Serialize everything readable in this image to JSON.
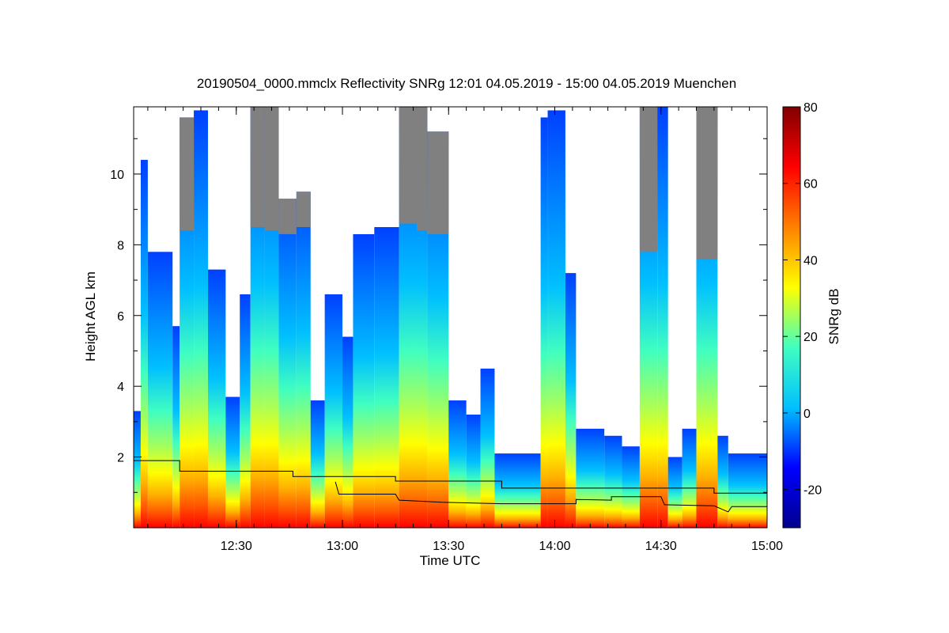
{
  "chart_data": {
    "type": "heatmap",
    "title": "20190504_0000.mmclx Reflectivity SNRg   12:01 04.05.2019 - 15:00 04.05.2019 Muenchen",
    "xlabel": "Time UTC",
    "ylabel": "Height AGL km",
    "colorbar_label": "SNRg dB",
    "xlim": [
      "12:01",
      "15:00"
    ],
    "ylim": [
      0,
      11.9
    ],
    "x_ticks": [
      "12:30",
      "13:00",
      "13:30",
      "14:00",
      "14:30",
      "15:00"
    ],
    "y_ticks": [
      2,
      4,
      6,
      8,
      10
    ],
    "colorbar_range": [
      -30,
      80
    ],
    "colorbar_ticks": [
      -20,
      0,
      20,
      40,
      60,
      80
    ],
    "colormap": [
      "#00008f",
      "#0000ff",
      "#00c0ff",
      "#40ffc0",
      "#ffff00",
      "#ff8000",
      "#ff0000",
      "#800000"
    ],
    "saturated_color": "#808080",
    "columns": [
      {
        "t0": "12:01",
        "t1": "12:03",
        "top": 3.3,
        "sat_above": 0
      },
      {
        "t0": "12:03",
        "t1": "12:05",
        "top": 10.4,
        "sat_above": 0
      },
      {
        "t0": "12:05",
        "t1": "12:12",
        "top": 7.8,
        "sat_above": 0
      },
      {
        "t0": "12:12",
        "t1": "12:14",
        "top": 5.7,
        "sat_above": 0
      },
      {
        "t0": "12:14",
        "t1": "12:18",
        "top": 11.6,
        "sat_above": 8.4
      },
      {
        "t0": "12:18",
        "t1": "12:22",
        "top": 11.8,
        "sat_above": 0
      },
      {
        "t0": "12:22",
        "t1": "12:27",
        "top": 7.3,
        "sat_above": 0
      },
      {
        "t0": "12:27",
        "t1": "12:31",
        "top": 3.7,
        "sat_above": 0
      },
      {
        "t0": "12:31",
        "t1": "12:34",
        "top": 6.6,
        "sat_above": 0
      },
      {
        "t0": "12:34",
        "t1": "12:38",
        "top": 11.9,
        "sat_above": 8.5
      },
      {
        "t0": "12:38",
        "t1": "12:42",
        "top": 11.9,
        "sat_above": 8.4
      },
      {
        "t0": "12:42",
        "t1": "12:47",
        "top": 9.3,
        "sat_above": 8.3
      },
      {
        "t0": "12:47",
        "t1": "12:51",
        "top": 9.5,
        "sat_above": 8.5
      },
      {
        "t0": "12:51",
        "t1": "12:55",
        "top": 3.6,
        "sat_above": 0
      },
      {
        "t0": "12:55",
        "t1": "13:00",
        "top": 6.6,
        "sat_above": 0
      },
      {
        "t0": "13:00",
        "t1": "13:03",
        "top": 5.4,
        "sat_above": 0
      },
      {
        "t0": "13:03",
        "t1": "13:09",
        "top": 8.3,
        "sat_above": 0
      },
      {
        "t0": "13:09",
        "t1": "13:16",
        "top": 8.5,
        "sat_above": 0
      },
      {
        "t0": "13:16",
        "t1": "13:21",
        "top": 11.9,
        "sat_above": 8.6
      },
      {
        "t0": "13:21",
        "t1": "13:24",
        "top": 11.9,
        "sat_above": 8.4
      },
      {
        "t0": "13:24",
        "t1": "13:30",
        "top": 11.2,
        "sat_above": 8.3
      },
      {
        "t0": "13:30",
        "t1": "13:35",
        "top": 3.6,
        "sat_above": 0
      },
      {
        "t0": "13:35",
        "t1": "13:39",
        "top": 3.2,
        "sat_above": 0
      },
      {
        "t0": "13:39",
        "t1": "13:43",
        "top": 4.5,
        "sat_above": 0
      },
      {
        "t0": "13:43",
        "t1": "13:56",
        "top": 2.1,
        "sat_above": 0
      },
      {
        "t0": "13:56",
        "t1": "13:58",
        "top": 11.6,
        "sat_above": 0
      },
      {
        "t0": "13:58",
        "t1": "14:03",
        "top": 11.8,
        "sat_above": 0
      },
      {
        "t0": "14:03",
        "t1": "14:06",
        "top": 7.2,
        "sat_above": 0
      },
      {
        "t0": "14:06",
        "t1": "14:14",
        "top": 2.8,
        "sat_above": 0
      },
      {
        "t0": "14:14",
        "t1": "14:19",
        "top": 2.6,
        "sat_above": 0
      },
      {
        "t0": "14:19",
        "t1": "14:24",
        "top": 2.3,
        "sat_above": 0
      },
      {
        "t0": "14:24",
        "t1": "14:29",
        "top": 11.9,
        "sat_above": 7.8
      },
      {
        "t0": "14:29",
        "t1": "14:32",
        "top": 11.9,
        "sat_above": 0
      },
      {
        "t0": "14:32",
        "t1": "14:36",
        "top": 2.0,
        "sat_above": 0
      },
      {
        "t0": "14:36",
        "t1": "14:40",
        "top": 2.8,
        "sat_above": 0
      },
      {
        "t0": "14:40",
        "t1": "14:46",
        "top": 11.9,
        "sat_above": 7.6
      },
      {
        "t0": "14:46",
        "t1": "14:49",
        "top": 2.6,
        "sat_above": 0
      },
      {
        "t0": "14:49",
        "t1": "15:00",
        "top": 2.1,
        "sat_above": 0
      }
    ],
    "line_upper": [
      [
        "12:01",
        1.9
      ],
      [
        "12:14",
        1.9
      ],
      [
        "12:14",
        1.6
      ],
      [
        "12:46",
        1.6
      ],
      [
        "12:46",
        1.45
      ],
      [
        "13:15",
        1.45
      ],
      [
        "13:15",
        1.32
      ],
      [
        "13:45",
        1.32
      ],
      [
        "13:45",
        1.12
      ],
      [
        "14:45",
        1.12
      ],
      [
        "14:45",
        0.98
      ],
      [
        "15:00",
        0.98
      ]
    ],
    "line_lower": [
      [
        "12:58",
        1.3
      ],
      [
        "12:59",
        0.95
      ],
      [
        "13:15",
        0.95
      ],
      [
        "13:16",
        0.78
      ],
      [
        "13:28",
        0.72
      ],
      [
        "13:45",
        0.68
      ],
      [
        "14:06",
        0.68
      ],
      [
        "14:06",
        0.8
      ],
      [
        "14:16",
        0.78
      ],
      [
        "14:16",
        0.88
      ],
      [
        "14:30",
        0.88
      ],
      [
        "14:31",
        0.65
      ],
      [
        "14:45",
        0.62
      ],
      [
        "14:49",
        0.45
      ],
      [
        "14:50",
        0.6
      ],
      [
        "15:00",
        0.6
      ]
    ]
  }
}
